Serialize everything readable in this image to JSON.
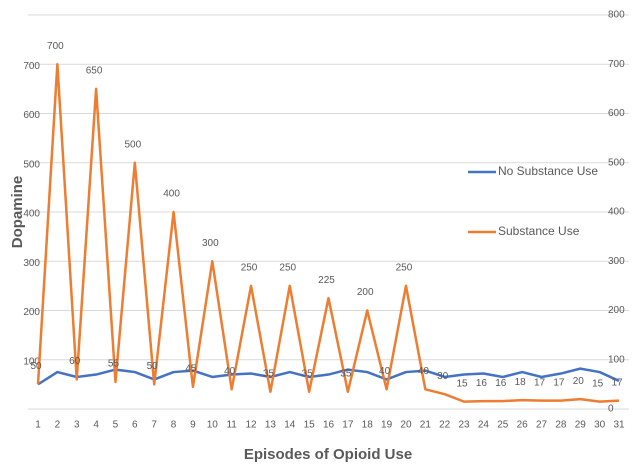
{
  "chart_data": {
    "type": "line",
    "x_label": "Episodes of Opioid Use",
    "y_label": "Dopamine",
    "categories": [
      "1",
      "2",
      "3",
      "4",
      "5",
      "6",
      "7",
      "8",
      "9",
      "10",
      "11",
      "12",
      "13",
      "14",
      "15",
      "16",
      "17",
      "18",
      "19",
      "20",
      "21",
      "22",
      "23",
      "24",
      "25",
      "26",
      "27",
      "28",
      "29",
      "30",
      "31"
    ],
    "series": [
      {
        "name": "No Substance Use",
        "color": "#4472c4",
        "axis": "y",
        "values": [
          50,
          75,
          65,
          70,
          80,
          75,
          60,
          75,
          78,
          65,
          70,
          72,
          65,
          75,
          65,
          70,
          80,
          75,
          60,
          75,
          78,
          65,
          70,
          72,
          65,
          75,
          65,
          72,
          82,
          75,
          57
        ]
      },
      {
        "name": "Substance Use",
        "color": "#ed7d31",
        "axis": "y2",
        "data_labels": true,
        "values": [
          50,
          700,
          60,
          650,
          55,
          500,
          50,
          400,
          45,
          300,
          40,
          250,
          35,
          250,
          35,
          225,
          35,
          200,
          40,
          250,
          40,
          30,
          15,
          16,
          16,
          18,
          17,
          17,
          20,
          15,
          17
        ]
      }
    ],
    "ylim": [
      0,
      800
    ],
    "yticks": [
      100,
      200,
      300,
      400,
      500,
      600,
      700
    ],
    "y2lim": [
      0,
      800
    ],
    "y2ticks": [
      0,
      100,
      200,
      300,
      400,
      500,
      600,
      700,
      800
    ],
    "grid": true,
    "legend": "right"
  }
}
